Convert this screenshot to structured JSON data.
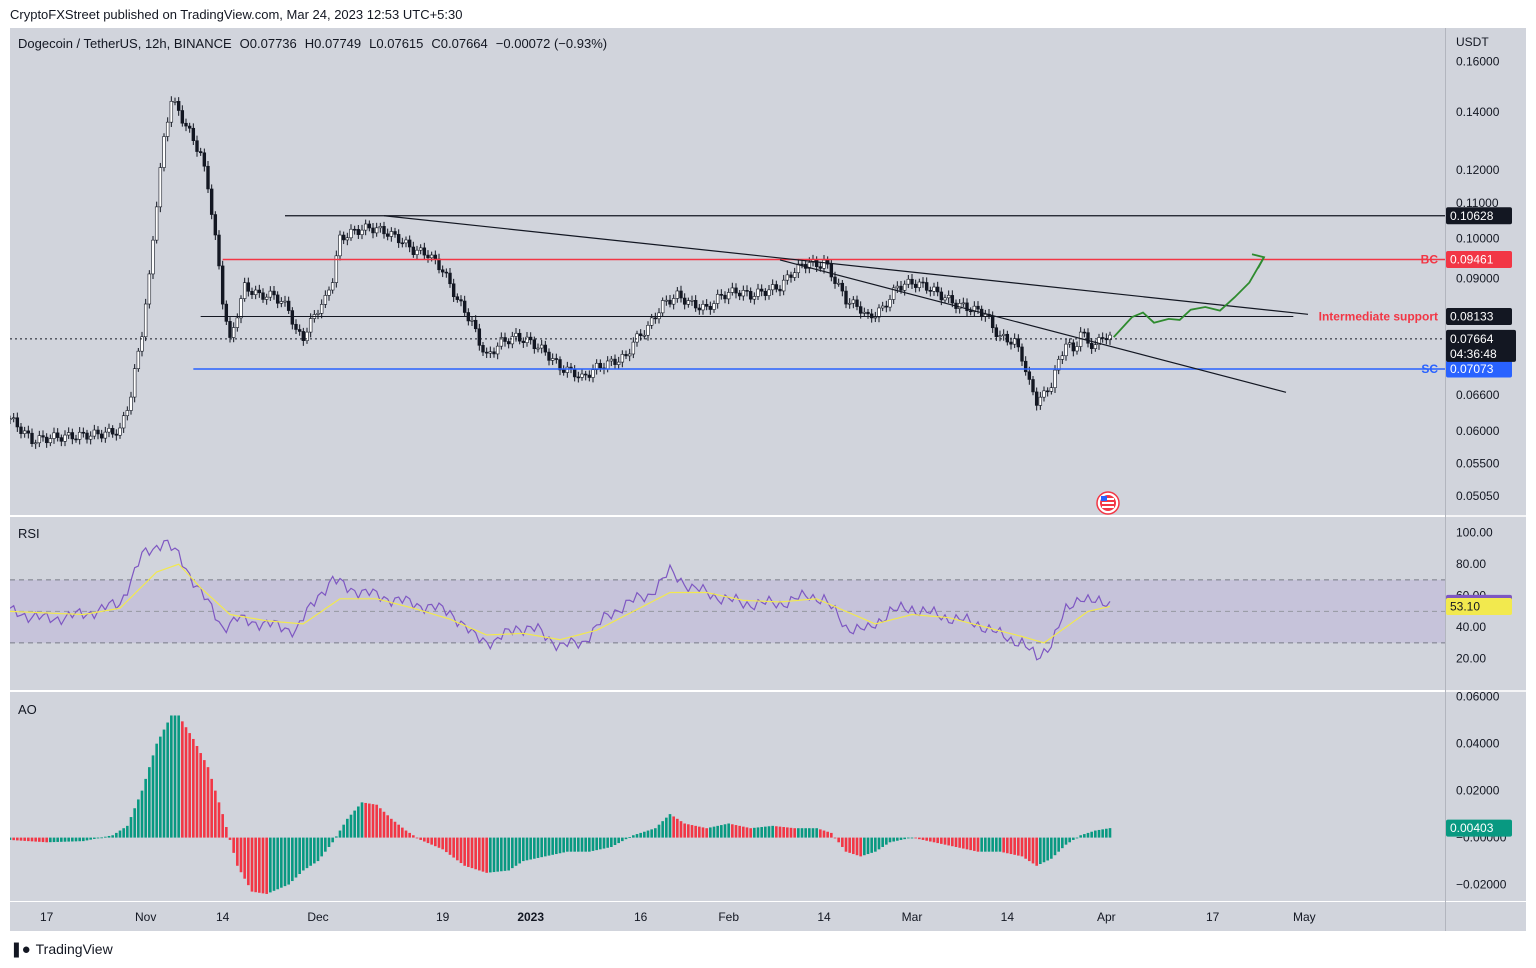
{
  "caption": "CryptoFXStreet published on TradingView.com, Mar 24, 2023 12:53 UTC+5:30",
  "footer": {
    "brand": "TradingView"
  },
  "colors": {
    "panel_bg": "#d1d4dc",
    "up": "#089981",
    "down": "#f23645",
    "bc_line": "#f23645",
    "sc_line": "#2962ff",
    "rsi_line": "#7e57c2",
    "rsi_ma": "#f2e94e",
    "arrow": "#2e8b2e"
  },
  "icons": [
    "flag-us-icon",
    "tradingview-logo-icon"
  ],
  "chart_data": [
    {
      "type": "candlestick",
      "pane": "price",
      "symbol_line": {
        "title": "Dogecoin / TetherUS, 12h, BINANCE",
        "o": "O0.07736",
        "h": "H0.07749",
        "l": "L0.07615",
        "c": "C0.07664",
        "change": "−0.00072 (−0.93%)"
      },
      "axis_unit": "USDT",
      "scale": "log",
      "ylim": [
        0.048,
        0.175
      ],
      "y_ticks": [
        "0.16000",
        "0.14000",
        "0.12000",
        "0.11000",
        "0.10000",
        "0.09000",
        "0.06600",
        "0.06000",
        "0.05500",
        "0.05050"
      ],
      "x_ticks": [
        "17",
        "Nov",
        "14",
        "Dec",
        "19",
        "2023",
        "16",
        "Feb",
        "14",
        "Mar",
        "14",
        "Apr",
        "17",
        "May"
      ],
      "x_ticks_bold": [
        "2023"
      ],
      "close_path": [
        [
          0,
          0.062
        ],
        [
          6,
          0.0585
        ],
        [
          12,
          0.059
        ],
        [
          18,
          0.0592
        ],
        [
          24,
          0.0595
        ],
        [
          30,
          0.06
        ],
        [
          33,
          0.066
        ],
        [
          36,
          0.078
        ],
        [
          38,
          0.09
        ],
        [
          40,
          0.11
        ],
        [
          42,
          0.13
        ],
        [
          44,
          0.145
        ],
        [
          46,
          0.14
        ],
        [
          48,
          0.135
        ],
        [
          50,
          0.13
        ],
        [
          52,
          0.125
        ],
        [
          54,
          0.115
        ],
        [
          56,
          0.1
        ],
        [
          58,
          0.085
        ],
        [
          60,
          0.076
        ],
        [
          62,
          0.082
        ],
        [
          64,
          0.088
        ],
        [
          68,
          0.086
        ],
        [
          72,
          0.086
        ],
        [
          76,
          0.083
        ],
        [
          78,
          0.078
        ],
        [
          80,
          0.077
        ],
        [
          82,
          0.08
        ],
        [
          84,
          0.083
        ],
        [
          86,
          0.085
        ],
        [
          88,
          0.09
        ],
        [
          90,
          0.1
        ],
        [
          94,
          0.102
        ],
        [
          98,
          0.103
        ],
        [
          102,
          0.102
        ],
        [
          106,
          0.1
        ],
        [
          110,
          0.097
        ],
        [
          114,
          0.096
        ],
        [
          118,
          0.092
        ],
        [
          122,
          0.085
        ],
        [
          126,
          0.08
        ],
        [
          128,
          0.076
        ],
        [
          130,
          0.073
        ],
        [
          134,
          0.076
        ],
        [
          138,
          0.077
        ],
        [
          142,
          0.076
        ],
        [
          146,
          0.074
        ],
        [
          150,
          0.071
        ],
        [
          154,
          0.07
        ],
        [
          156,
          0.069
        ],
        [
          160,
          0.071
        ],
        [
          164,
          0.072
        ],
        [
          168,
          0.073
        ],
        [
          170,
          0.076
        ],
        [
          174,
          0.079
        ],
        [
          178,
          0.084
        ],
        [
          182,
          0.086
        ],
        [
          186,
          0.084
        ],
        [
          190,
          0.083
        ],
        [
          194,
          0.086
        ],
        [
          198,
          0.087
        ],
        [
          202,
          0.086
        ],
        [
          206,
          0.087
        ],
        [
          210,
          0.088
        ],
        [
          214,
          0.092
        ],
        [
          218,
          0.094
        ],
        [
          220,
          0.093
        ],
        [
          222,
          0.094
        ],
        [
          224,
          0.091
        ],
        [
          228,
          0.085
        ],
        [
          232,
          0.083
        ],
        [
          234,
          0.081
        ],
        [
          238,
          0.083
        ],
        [
          242,
          0.088
        ],
        [
          246,
          0.089
        ],
        [
          250,
          0.088
        ],
        [
          254,
          0.086
        ],
        [
          258,
          0.084
        ],
        [
          262,
          0.083
        ],
        [
          266,
          0.082
        ],
        [
          268,
          0.079
        ],
        [
          270,
          0.077
        ],
        [
          274,
          0.076
        ],
        [
          276,
          0.073
        ],
        [
          278,
          0.068
        ],
        [
          280,
          0.065
        ],
        [
          282,
          0.066
        ],
        [
          284,
          0.068
        ],
        [
          286,
          0.072
        ],
        [
          288,
          0.076
        ],
        [
          290,
          0.074
        ],
        [
          292,
          0.078
        ],
        [
          294,
          0.076
        ],
        [
          296,
          0.075
        ],
        [
          298,
          0.0774
        ],
        [
          300,
          0.0766
        ]
      ],
      "levels": [
        {
          "label": "0.10628",
          "value": 0.10628,
          "role": "range-high"
        },
        {
          "label": "BC",
          "price_label": "0.09461",
          "value": 0.09461
        },
        {
          "label": "Intermediate support",
          "price_label": "0.08133",
          "value": 0.08133
        },
        {
          "label": "SC",
          "price_label": "0.07073",
          "value": 0.07073
        }
      ],
      "last_price": {
        "value": "0.07664",
        "countdown": "04:36:48"
      }
    },
    {
      "type": "line",
      "pane": "RSI",
      "label": "RSI",
      "ylim": [
        0,
        110
      ],
      "y_ticks": [
        "100.00",
        "80.00",
        "60.00",
        "40.00",
        "20.00"
      ],
      "band": [
        30,
        70
      ],
      "midline": 50,
      "series": [
        {
          "name": "RSI",
          "values": [
            [
              0,
              50
            ],
            [
              10,
              45
            ],
            [
              20,
              48
            ],
            [
              30,
              55
            ],
            [
              36,
              85
            ],
            [
              42,
              95
            ],
            [
              46,
              85
            ],
            [
              50,
              70
            ],
            [
              54,
              55
            ],
            [
              58,
              40
            ],
            [
              62,
              45
            ],
            [
              70,
              42
            ],
            [
              78,
              38
            ],
            [
              84,
              60
            ],
            [
              88,
              70
            ],
            [
              92,
              65
            ],
            [
              100,
              60
            ],
            [
              110,
              55
            ],
            [
              120,
              50
            ],
            [
              126,
              35
            ],
            [
              132,
              30
            ],
            [
              138,
              40
            ],
            [
              144,
              38
            ],
            [
              150,
              28
            ],
            [
              156,
              30
            ],
            [
              162,
              45
            ],
            [
              168,
              55
            ],
            [
              174,
              60
            ],
            [
              180,
              75
            ],
            [
              186,
              65
            ],
            [
              192,
              60
            ],
            [
              200,
              55
            ],
            [
              210,
              55
            ],
            [
              218,
              60
            ],
            [
              222,
              58
            ],
            [
              228,
              40
            ],
            [
              234,
              38
            ],
            [
              240,
              50
            ],
            [
              246,
              52
            ],
            [
              252,
              48
            ],
            [
              258,
              45
            ],
            [
              264,
              42
            ],
            [
              270,
              35
            ],
            [
              276,
              30
            ],
            [
              280,
              20
            ],
            [
              284,
              30
            ],
            [
              288,
              50
            ],
            [
              292,
              60
            ],
            [
              296,
              55
            ],
            [
              300,
              55.1
            ]
          ]
        },
        {
          "name": "RSI MA",
          "values": [
            [
              0,
              50
            ],
            [
              20,
              48
            ],
            [
              30,
              52
            ],
            [
              40,
              75
            ],
            [
              46,
              80
            ],
            [
              52,
              65
            ],
            [
              60,
              48
            ],
            [
              70,
              44
            ],
            [
              80,
              42
            ],
            [
              90,
              58
            ],
            [
              100,
              58
            ],
            [
              110,
              52
            ],
            [
              120,
              45
            ],
            [
              130,
              35
            ],
            [
              140,
              36
            ],
            [
              150,
              32
            ],
            [
              160,
              38
            ],
            [
              170,
              50
            ],
            [
              180,
              62
            ],
            [
              190,
              62
            ],
            [
              200,
              57
            ],
            [
              210,
              56
            ],
            [
              220,
              58
            ],
            [
              228,
              50
            ],
            [
              236,
              42
            ],
            [
              246,
              48
            ],
            [
              256,
              46
            ],
            [
              266,
              40
            ],
            [
              276,
              34
            ],
            [
              282,
              30
            ],
            [
              288,
              40
            ],
            [
              294,
              50
            ],
            [
              300,
              53.1
            ]
          ]
        }
      ],
      "value_labels": [
        "55.10",
        "53.10"
      ]
    },
    {
      "type": "bar",
      "pane": "AO",
      "label": "AO",
      "ylim": [
        -0.027,
        0.062
      ],
      "y_ticks": [
        "0.06000",
        "0.04000",
        "0.02000",
        "−0.00000",
        "−0.02000"
      ],
      "values": [
        [
          0,
          -0.001
        ],
        [
          10,
          -0.002
        ],
        [
          20,
          -0.0015
        ],
        [
          28,
          0.001
        ],
        [
          32,
          0.005
        ],
        [
          36,
          0.02
        ],
        [
          40,
          0.04
        ],
        [
          44,
          0.052
        ],
        [
          46,
          0.052
        ],
        [
          50,
          0.042
        ],
        [
          54,
          0.03
        ],
        [
          58,
          0.01
        ],
        [
          62,
          -0.012
        ],
        [
          66,
          -0.023
        ],
        [
          70,
          -0.024
        ],
        [
          76,
          -0.02
        ],
        [
          80,
          -0.014
        ],
        [
          84,
          -0.01
        ],
        [
          88,
          -0.002
        ],
        [
          92,
          0.008
        ],
        [
          96,
          0.015
        ],
        [
          100,
          0.014
        ],
        [
          104,
          0.008
        ],
        [
          108,
          0.003
        ],
        [
          112,
          -0.001
        ],
        [
          118,
          -0.005
        ],
        [
          124,
          -0.012
        ],
        [
          130,
          -0.015
        ],
        [
          136,
          -0.014
        ],
        [
          140,
          -0.01
        ],
        [
          146,
          -0.008
        ],
        [
          152,
          -0.006
        ],
        [
          158,
          -0.006
        ],
        [
          164,
          -0.004
        ],
        [
          170,
          0.001
        ],
        [
          176,
          0.004
        ],
        [
          180,
          0.01
        ],
        [
          184,
          0.006
        ],
        [
          190,
          0.004
        ],
        [
          196,
          0.006
        ],
        [
          202,
          0.004
        ],
        [
          208,
          0.005
        ],
        [
          214,
          0.004
        ],
        [
          220,
          0.004
        ],
        [
          224,
          0.002
        ],
        [
          228,
          -0.006
        ],
        [
          232,
          -0.008
        ],
        [
          236,
          -0.006
        ],
        [
          240,
          -0.002
        ],
        [
          246,
          0.0
        ],
        [
          252,
          -0.002
        ],
        [
          258,
          -0.004
        ],
        [
          264,
          -0.006
        ],
        [
          270,
          -0.006
        ],
        [
          276,
          -0.008
        ],
        [
          280,
          -0.012
        ],
        [
          284,
          -0.009
        ],
        [
          288,
          -0.003
        ],
        [
          292,
          0.001
        ],
        [
          296,
          0.003
        ],
        [
          300,
          0.00403
        ]
      ],
      "last_value": "0.00403"
    }
  ]
}
